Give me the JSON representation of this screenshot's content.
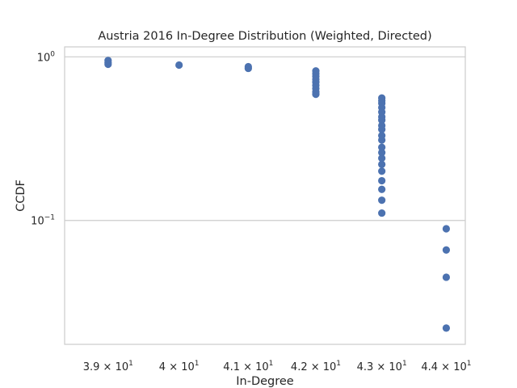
{
  "chart_data": {
    "type": "scatter",
    "title": "Austria 2016 In-Degree Distribution (Weighted, Directed)",
    "xlabel": "In-Degree",
    "ylabel": "CCDF",
    "xscale": "log",
    "yscale": "log",
    "grid": "y-major",
    "legend": "none",
    "color": "#4c72b0",
    "xlim": [
      38.4,
      44.3
    ],
    "ylim": [
      0.0175,
      1.15
    ],
    "x_ticks": [
      {
        "value": 39,
        "mantissa": "3.9",
        "base": "10",
        "exp": "1"
      },
      {
        "value": 40,
        "mantissa": "4",
        "base": "10",
        "exp": "1"
      },
      {
        "value": 41,
        "mantissa": "4.1",
        "base": "10",
        "exp": "1"
      },
      {
        "value": 42,
        "mantissa": "4.2",
        "base": "10",
        "exp": "1"
      },
      {
        "value": 43,
        "mantissa": "4.3",
        "base": "10",
        "exp": "1"
      },
      {
        "value": 44,
        "mantissa": "4.4",
        "base": "10",
        "exp": "1"
      }
    ],
    "y_ticks": [
      {
        "value": 1.0,
        "base": "10",
        "exp": "0"
      },
      {
        "value": 0.1,
        "base": "10",
        "exp": "−1"
      }
    ],
    "points": [
      {
        "x": 39,
        "y": 0.95
      },
      {
        "x": 39,
        "y": 0.92
      },
      {
        "x": 39,
        "y": 0.9
      },
      {
        "x": 40,
        "y": 0.89
      },
      {
        "x": 41,
        "y": 0.87
      },
      {
        "x": 41,
        "y": 0.85
      },
      {
        "x": 42,
        "y": 0.82
      },
      {
        "x": 42,
        "y": 0.79
      },
      {
        "x": 42,
        "y": 0.76
      },
      {
        "x": 42,
        "y": 0.73
      },
      {
        "x": 42,
        "y": 0.7
      },
      {
        "x": 42,
        "y": 0.67
      },
      {
        "x": 42,
        "y": 0.64
      },
      {
        "x": 42,
        "y": 0.61
      },
      {
        "x": 42,
        "y": 0.59
      },
      {
        "x": 43,
        "y": 0.56
      },
      {
        "x": 43,
        "y": 0.54
      },
      {
        "x": 43,
        "y": 0.52
      },
      {
        "x": 43,
        "y": 0.49
      },
      {
        "x": 43,
        "y": 0.46
      },
      {
        "x": 43,
        "y": 0.43
      },
      {
        "x": 43,
        "y": 0.41
      },
      {
        "x": 43,
        "y": 0.38
      },
      {
        "x": 43,
        "y": 0.36
      },
      {
        "x": 43,
        "y": 0.33
      },
      {
        "x": 43,
        "y": 0.31
      },
      {
        "x": 43,
        "y": 0.28
      },
      {
        "x": 43,
        "y": 0.26
      },
      {
        "x": 43,
        "y": 0.24
      },
      {
        "x": 43,
        "y": 0.22
      },
      {
        "x": 43,
        "y": 0.2
      },
      {
        "x": 43,
        "y": 0.175
      },
      {
        "x": 43,
        "y": 0.155
      },
      {
        "x": 43,
        "y": 0.133
      },
      {
        "x": 43,
        "y": 0.111
      },
      {
        "x": 44,
        "y": 0.089
      },
      {
        "x": 44,
        "y": 0.066
      },
      {
        "x": 44,
        "y": 0.045
      },
      {
        "x": 44,
        "y": 0.022
      }
    ]
  }
}
